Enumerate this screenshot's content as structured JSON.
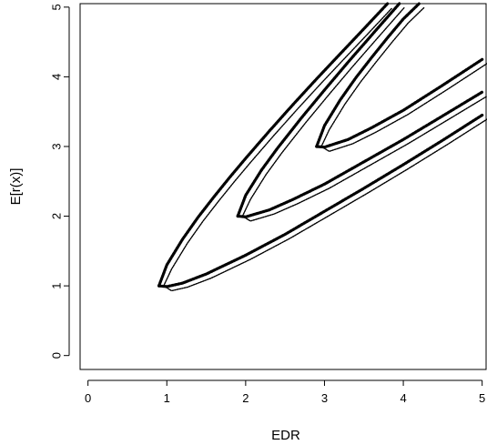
{
  "chart_data": {
    "type": "line",
    "title": "",
    "xlabel": "EDR",
    "ylabel": "E[r(x)]",
    "xlim": [
      -0.1,
      5.05
    ],
    "ylim": [
      -0.2,
      5.05
    ],
    "x_ticks": [
      0,
      1,
      2,
      3,
      4,
      5
    ],
    "y_ticks": [
      0,
      1,
      2,
      3,
      4,
      5
    ],
    "grid": false,
    "legend": "none",
    "line_color": "#000000",
    "series": [
      {
        "upper": {
          "x": [
            0.9,
            1.0,
            1.2,
            1.4,
            1.6,
            1.8,
            2.0,
            2.3,
            2.6,
            2.9,
            3.2,
            3.5,
            3.8
          ],
          "y": [
            1.0,
            1.3,
            1.67,
            1.99,
            2.28,
            2.56,
            2.83,
            3.22,
            3.6,
            3.97,
            4.33,
            4.69,
            5.05
          ]
        },
        "lower": {
          "x": [
            0.9,
            1.0,
            1.2,
            1.5,
            2.0,
            2.5,
            3.0,
            3.5,
            4.0,
            4.5,
            5.0
          ],
          "y": [
            1.0,
            0.99,
            1.04,
            1.17,
            1.44,
            1.74,
            2.07,
            2.4,
            2.74,
            3.09,
            3.45
          ]
        }
      },
      {
        "upper": {
          "x": [
            1.9,
            2.0,
            2.2,
            2.4,
            2.7,
            3.0,
            3.3,
            3.6,
            3.95
          ],
          "y": [
            2.0,
            2.3,
            2.66,
            2.97,
            3.4,
            3.81,
            4.21,
            4.6,
            5.05
          ]
        },
        "lower": {
          "x": [
            1.9,
            2.0,
            2.3,
            2.6,
            3.0,
            3.5,
            4.0,
            4.5,
            5.0
          ],
          "y": [
            2.0,
            1.99,
            2.09,
            2.24,
            2.46,
            2.78,
            3.1,
            3.44,
            3.78
          ]
        }
      },
      {
        "upper": {
          "x": [
            2.9,
            3.0,
            3.2,
            3.4,
            3.6,
            3.8,
            4.0,
            4.2
          ],
          "y": [
            3.0,
            3.3,
            3.67,
            3.99,
            4.28,
            4.56,
            4.83,
            5.05
          ]
        },
        "lower": {
          "x": [
            2.9,
            3.0,
            3.3,
            3.6,
            4.0,
            4.5,
            5.0
          ],
          "y": [
            3.0,
            2.99,
            3.1,
            3.27,
            3.52,
            3.88,
            4.25
          ]
        }
      }
    ]
  }
}
